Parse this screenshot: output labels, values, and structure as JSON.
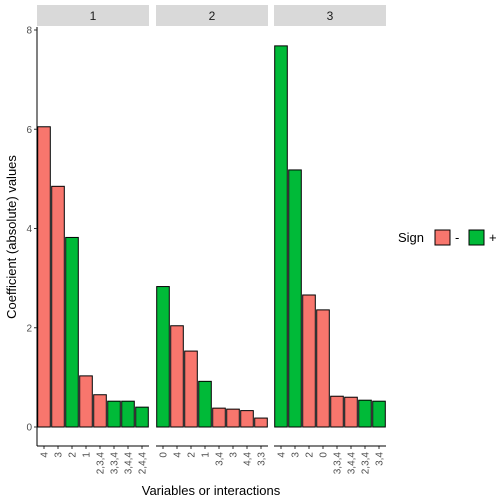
{
  "chart_data": {
    "type": "bar",
    "xlabel": "Variables or interactions",
    "ylabel": "Coefficient (absolute) values",
    "ylim": [
      0,
      8
    ],
    "yticks": [
      0,
      2,
      4,
      6,
      8
    ],
    "grid": false,
    "legend": {
      "title": "Sign",
      "placement": "right",
      "entries": [
        {
          "label": "-",
          "color": "#F8766D"
        },
        {
          "label": "+",
          "color": "#00BA38"
        }
      ]
    },
    "panels": [
      {
        "strip": "1",
        "categories": [
          "4",
          "3",
          "2",
          "1",
          "2,3,4",
          "3,3,4",
          "3,4,4",
          "2,4,4"
        ],
        "values": [
          6.05,
          4.85,
          3.82,
          1.03,
          0.65,
          0.52,
          0.52,
          0.4
        ],
        "signs": [
          "-",
          "-",
          "+",
          "-",
          "-",
          "+",
          "+",
          "+"
        ]
      },
      {
        "strip": "2",
        "categories": [
          "0",
          "4",
          "2",
          "1",
          "3,4",
          "3",
          "4,4",
          "3,3"
        ],
        "values": [
          2.83,
          2.04,
          1.53,
          0.92,
          0.38,
          0.36,
          0.33,
          0.18
        ],
        "signs": [
          "+",
          "-",
          "-",
          "+",
          "-",
          "-",
          "-",
          "-"
        ]
      },
      {
        "strip": "3",
        "categories": [
          "4",
          "3",
          "2",
          "0",
          "3,3,4",
          "3,4,4",
          "2,3,4",
          "3,4"
        ],
        "values": [
          7.68,
          5.18,
          2.66,
          2.36,
          0.62,
          0.6,
          0.54,
          0.52
        ],
        "signs": [
          "+",
          "+",
          "-",
          "-",
          "-",
          "-",
          "+",
          "+"
        ]
      }
    ]
  }
}
